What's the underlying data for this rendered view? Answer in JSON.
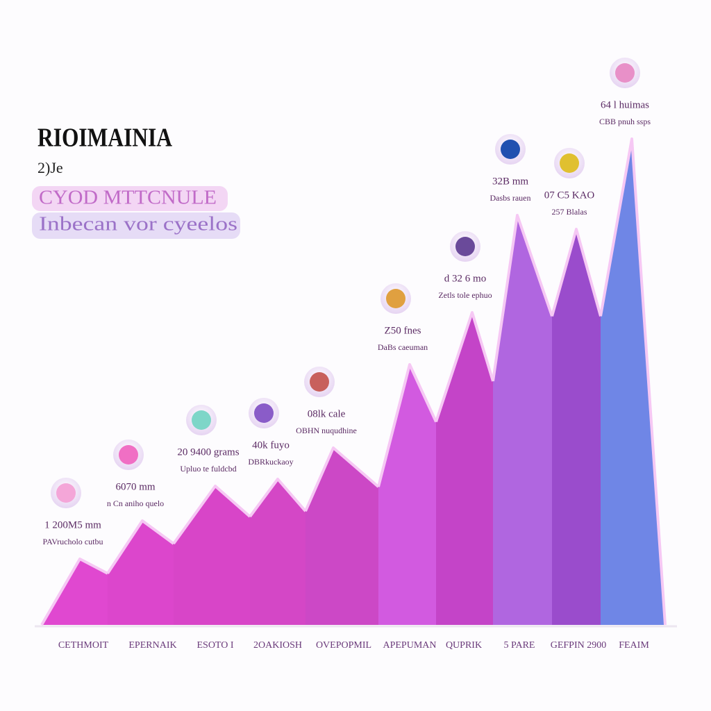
{
  "chart_data": {
    "type": "peaks",
    "title": "RIOIMAINIA",
    "subtitle": "2)Je",
    "tags": [
      "CYOD MTTCNULE",
      "Inbecan vor cyeelos"
    ],
    "categories": [
      "CETHMOIT",
      "EPERNAIK",
      "ESOTO I",
      "2OAKIOSH",
      "OVEPOPMIL",
      "APEPUMAN",
      "QUPRIK",
      "5 PARE",
      "GEFPIN 2900",
      "FEAIM"
    ],
    "values": [
      95,
      150,
      200,
      210,
      255,
      375,
      450,
      590,
      570,
      700
    ],
    "colors": [
      "#e048d0",
      "#dc46cc",
      "#d845c8",
      "#d447c6",
      "#cc48c6",
      "#d25ae0",
      "#c444c8",
      "#b066e0",
      "#9a4ccc",
      "#6f86e6"
    ],
    "annotations": [
      [
        "1 200M5 mm",
        "PAVrucholo cutbu"
      ],
      [
        "6070 mm",
        "n Cn aniho quelo"
      ],
      [
        "20 9400 grams",
        "Upluo te fuldcbd"
      ],
      [
        "40k fuyo",
        "DBRkuckaoy"
      ],
      [
        "08lk cale",
        "OBHN nuqudhine"
      ],
      [
        "Z50 fnes",
        "DaBs caeuman"
      ],
      [
        "d 32 6 mo",
        "Zetls tole ephuo"
      ],
      [
        "32B mm",
        "Dasbs rauen"
      ],
      [
        "07 C5 KAO",
        "257 Blalas"
      ],
      [
        "64 l huimas",
        "CBB pnuh ssps"
      ]
    ],
    "ylim": [
      0,
      760
    ]
  }
}
